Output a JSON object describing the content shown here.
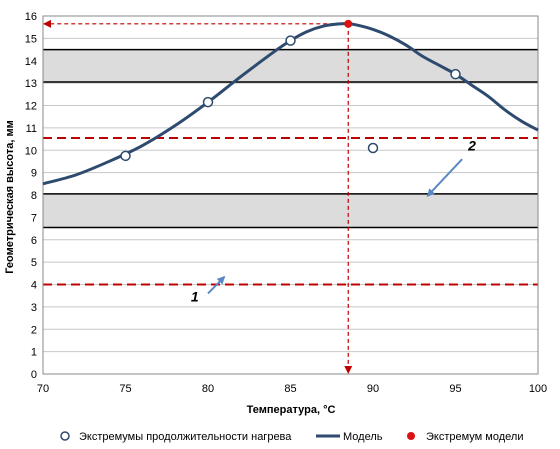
{
  "chart_data": {
    "type": "line",
    "xlabel": "Температура, ",
    "xlabel_unit": "°C",
    "ylabel": "Геометрическая высота, мм",
    "xlim": [
      70,
      100
    ],
    "ylim": [
      0,
      16
    ],
    "x_ticks": [
      "70",
      "75",
      "80",
      "85",
      "90",
      "95",
      "100"
    ],
    "y_ticks": [
      "0",
      "1",
      "2",
      "3",
      "4",
      "5",
      "6",
      "7",
      "8",
      "9",
      "10",
      "11",
      "12",
      "13",
      "14",
      "15",
      "16"
    ],
    "grid": "horizontal",
    "series": [
      {
        "name": "Экстремумы продолжительности нагрева",
        "kind": "markers",
        "x": [
          75,
          80,
          85,
          90,
          95
        ],
        "y": [
          9.75,
          12.15,
          14.9,
          10.1,
          13.4
        ]
      },
      {
        "name": "Модель",
        "kind": "line",
        "x": [
          70,
          72,
          74,
          76,
          78,
          80,
          82,
          84,
          85,
          86,
          87,
          88,
          88.5,
          89,
          90,
          91,
          92,
          93,
          94,
          95,
          96,
          97,
          98,
          99,
          100
        ],
        "y": [
          8.5,
          8.9,
          9.5,
          10.2,
          11.1,
          12.15,
          13.3,
          14.4,
          14.9,
          15.3,
          15.55,
          15.65,
          15.65,
          15.6,
          15.4,
          15.1,
          14.7,
          14.2,
          13.8,
          13.4,
          12.9,
          12.4,
          11.8,
          11.3,
          10.9
        ]
      },
      {
        "name": "Экстремум модели",
        "kind": "marker",
        "x": [
          88.5
        ],
        "y": [
          15.65
        ]
      }
    ],
    "bands": [
      [
        13.05,
        14.5
      ],
      [
        6.55,
        8.05
      ]
    ],
    "dashed_levels": [
      10.55,
      4.0
    ],
    "extremum_guides": {
      "x": 88.5,
      "y": 15.65
    },
    "annotations": [
      {
        "label": "1",
        "text_x": 79.2,
        "text_y": 3.25,
        "arrow_from": [
          80,
          3.6
        ],
        "arrow_to": [
          81,
          4.35
        ]
      },
      {
        "label": "2",
        "text_x": 96.0,
        "text_y": 10.0,
        "arrow_from": [
          95.4,
          9.6
        ],
        "arrow_to": [
          93.3,
          7.95
        ]
      }
    ],
    "legend_position": "bottom",
    "colors": {
      "line": "#2e4a6e",
      "marker_fill": "#ffffff",
      "marker_stroke": "#2e4a6e",
      "extremum": "#dd1111",
      "dashed": "#c00000",
      "band_fill": "#dcdcdc",
      "band_edge": "#000000",
      "arrow": "#5b87c4"
    }
  }
}
